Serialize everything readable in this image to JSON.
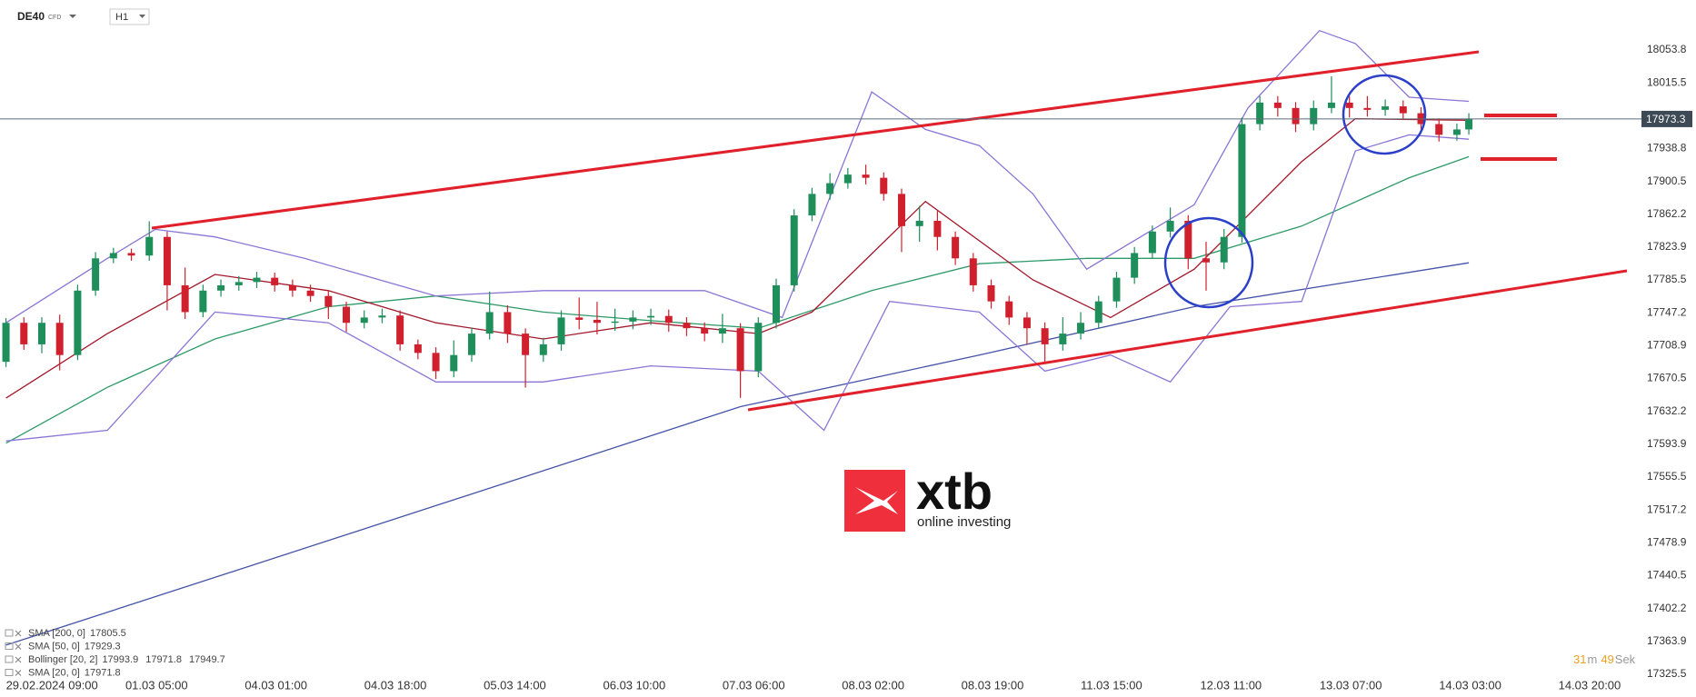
{
  "header": {
    "symbol": "DE40",
    "instrument": "CFD",
    "timeframe": "H1"
  },
  "logo": {
    "brand": "xtb",
    "tagline": "online investing"
  },
  "countdown": {
    "minutes": 31,
    "minutes_unit": "m",
    "seconds": 49,
    "seconds_unit": "Sek"
  },
  "chart_data": {
    "type": "candlestick",
    "up_color": "#1e8e5a",
    "down_color": "#d0202e",
    "xlim": [
      -1,
      273
    ],
    "ylim": [
      17322.3,
      18112.1
    ],
    "xticks": [
      {
        "value": 0,
        "label": "29.02.2024 09:00"
      },
      {
        "value": 20,
        "label": "01.03 05:00"
      },
      {
        "value": 40,
        "label": "04.03 01:00"
      },
      {
        "value": 60,
        "label": "04.03 18:00"
      },
      {
        "value": 80,
        "label": "05.03 14:00"
      },
      {
        "value": 100,
        "label": "06.03 10:00"
      },
      {
        "value": 120,
        "label": "07.03 06:00"
      },
      {
        "value": 140,
        "label": "08.03 02:00"
      },
      {
        "value": 160,
        "label": "08.03 19:00"
      },
      {
        "value": 180,
        "label": "11.03 15:00"
      },
      {
        "value": 200,
        "label": "12.03 11:00"
      },
      {
        "value": 220,
        "label": "13.03 07:00"
      },
      {
        "value": 240,
        "label": "14.03 03:00"
      },
      {
        "value": 260,
        "label": "14.03 20:00"
      }
    ],
    "yticks": [
      18053.8,
      18015.5,
      17938.8,
      17900.5,
      17862.2,
      17823.9,
      17785.5,
      17747.2,
      17708.9,
      17670.5,
      17632.2,
      17593.9,
      17555.5,
      17517.2,
      17478.9,
      17440.5,
      17402.2,
      17363.9,
      17325.5
    ],
    "current_price": 17973.3,
    "candles": {
      "x": [
        0,
        3,
        6,
        9,
        12,
        15,
        18,
        21,
        24,
        27,
        30,
        33,
        36,
        39,
        42,
        45,
        48,
        51,
        54,
        57,
        60,
        63,
        66,
        69,
        72,
        75,
        78,
        81,
        84,
        87,
        90,
        93,
        96,
        99,
        102,
        105,
        108,
        111,
        114,
        117,
        120,
        123,
        126,
        129,
        132,
        135,
        138,
        141,
        144,
        147,
        150,
        153,
        156,
        159,
        162,
        165,
        168,
        171,
        174,
        177,
        180,
        183,
        186,
        189,
        192,
        195,
        198,
        201,
        204,
        207,
        210,
        213,
        216,
        219,
        222,
        225,
        228,
        231,
        234,
        237,
        240,
        243,
        245
      ],
      "open": [
        17690.0,
        17735.5,
        17710.4,
        17735.5,
        17697.9,
        17773.1,
        17810.7,
        17816.9,
        17814.0,
        17835.7,
        17779.3,
        17748.0,
        17773.1,
        17779.3,
        17783.1,
        17788.1,
        17779.3,
        17773.1,
        17766.8,
        17754.3,
        17735.5,
        17741.7,
        17744.0,
        17710.4,
        17700.4,
        17679.1,
        17697.9,
        17722.9,
        17748.0,
        17722.9,
        17697.9,
        17710.4,
        17741.7,
        17739.0,
        17735.5,
        17737.0,
        17741.7,
        17743.5,
        17735.5,
        17729.2,
        17722.9,
        17729.2,
        17679.1,
        17735.5,
        17779.3,
        17860.8,
        17885.9,
        17898.4,
        17908.4,
        17904.7,
        17885.9,
        17848.3,
        17854.5,
        17835.7,
        17810.7,
        17779.3,
        17760.5,
        17741.7,
        17729.2,
        17710.4,
        17722.9,
        17735.5,
        17760.5,
        17788.1,
        17816.9,
        17842.0,
        17854.5,
        17810.7,
        17806.0,
        17835.7,
        17967.3,
        17992.4,
        17986.1,
        17967.3,
        17986.1,
        17992.4,
        17986.1,
        17984.0,
        17988.0,
        17980.0,
        17967.3,
        17954.8,
        17961.1
      ],
      "high": [
        17741,
        17742,
        17742,
        17745,
        17780,
        17818,
        17823,
        17822,
        17854,
        17842,
        17800,
        17780,
        17786,
        17790,
        17795,
        17794,
        17786,
        17780,
        17773,
        17760,
        17750,
        17752,
        17750,
        17716,
        17707,
        17715,
        17730,
        17772,
        17756,
        17729,
        17718,
        17750,
        17765,
        17760,
        17752,
        17750,
        17752,
        17751,
        17742,
        17736,
        17746,
        17735,
        17742,
        17787,
        17868,
        17893,
        17910,
        17916,
        17920,
        17911,
        17892,
        17872,
        17866,
        17842,
        17817,
        17786,
        17767,
        17748,
        17736,
        17742,
        17748,
        17767,
        17795,
        17824,
        17849,
        17870,
        17861,
        17830,
        17845,
        17975,
        18000,
        18000,
        17993,
        17995,
        18023,
        18000,
        18000,
        17996,
        17995,
        17987,
        17974,
        17968,
        17980
      ],
      "low": [
        17684,
        17704,
        17700,
        17680,
        17692,
        17767,
        17805,
        17808,
        17808,
        17750,
        17740,
        17742,
        17766,
        17773,
        17776,
        17772,
        17766,
        17760,
        17740,
        17725,
        17729,
        17735,
        17703,
        17693,
        17670,
        17672,
        17690,
        17716,
        17712,
        17660,
        17690,
        17703,
        17728,
        17722,
        17726,
        17728,
        17733,
        17725,
        17720,
        17714,
        17712,
        17648,
        17672,
        17729,
        17772,
        17854,
        17879,
        17892,
        17897,
        17878,
        17818,
        17830,
        17820,
        17803,
        17772,
        17752,
        17733,
        17710,
        17690,
        17703,
        17716,
        17729,
        17753,
        17781,
        17810,
        17835,
        17798,
        17773,
        17798,
        17829,
        17960,
        17976,
        17958,
        17960,
        17980,
        17975,
        17976,
        17977,
        17972,
        17958,
        17947,
        17948,
        17955
      ],
      "close": [
        17735.5,
        17710.4,
        17735.5,
        17697.9,
        17773.1,
        17810.7,
        17816.9,
        17814.0,
        17835.7,
        17779.3,
        17748.0,
        17773.1,
        17779.3,
        17783.1,
        17788.1,
        17779.3,
        17773.1,
        17766.8,
        17754.3,
        17735.5,
        17741.7,
        17744.0,
        17710.4,
        17700.4,
        17679.1,
        17697.9,
        17722.9,
        17748.0,
        17722.9,
        17697.9,
        17710.4,
        17741.7,
        17739.0,
        17735.5,
        17737.0,
        17741.7,
        17743.5,
        17735.5,
        17729.2,
        17722.9,
        17729.2,
        17679.1,
        17735.5,
        17779.3,
        17860.8,
        17885.9,
        17898.4,
        17908.4,
        17904.7,
        17885.9,
        17848.3,
        17854.5,
        17835.7,
        17810.7,
        17779.3,
        17760.5,
        17741.7,
        17729.2,
        17710.4,
        17722.9,
        17735.5,
        17760.5,
        17788.1,
        17816.9,
        17842.0,
        17854.5,
        17810.7,
        17806.0,
        17835.7,
        17967.3,
        17992.4,
        17986.1,
        17967.3,
        17986.1,
        17992.4,
        17986.1,
        17984.0,
        17988.0,
        17980.0,
        17967.3,
        17954.8,
        17961.1,
        17973.3
      ]
    },
    "indicators": [
      {
        "name": "SMA [200, 0]",
        "color": "#4453a8",
        "readings": [
          17805.5
        ],
        "lines": [
          {
            "x": [
              0,
              61,
              123,
              163,
              199,
              245
            ],
            "values": [
              17359.5,
              17497.3,
              17637.7,
              17697.9,
              17754.3,
              17805.5
            ]
          }
        ]
      },
      {
        "name": "SMA [50, 0]",
        "color": "#2e9a68",
        "readings": [
          17929.3
        ],
        "lines": [
          {
            "x": [
              0,
              17,
              35,
              54,
              72,
              90,
              108,
              126,
              145,
              163,
              181,
              199,
              217,
              235,
              245
            ],
            "values": [
              17595.1,
              17660.3,
              17716.7,
              17754.3,
              17766.8,
              17748.0,
              17738.0,
              17729.2,
              17773.1,
              17804.4,
              17810.7,
              17810.7,
              17848.3,
              17904.7,
              17929.3
            ]
          }
        ]
      },
      {
        "name": "Bollinger [20, 2]",
        "color": "#8b74d6",
        "readings": [
          17993.9,
          17971.8,
          17949.7
        ],
        "lines": [
          {
            "x": [
              0,
              17,
              25,
              35,
              50,
              72,
              90,
              117,
              130,
              145,
              154,
              163,
              172,
              181,
              199,
              208,
              220,
              226,
              235,
              245
            ],
            "values": [
              17735.5,
              17810.7,
              17844.5,
              17835.7,
              17810.7,
              17766.8,
              17773.1,
              17773.1,
              17741.7,
              18004.9,
              17961.1,
              17942.3,
              17885.9,
              17798.1,
              17873.3,
              17986.1,
              18076.4,
              18061.3,
              17998.7,
              17993.9
            ]
          },
          {
            "x": [
              0,
              17,
              26,
              35,
              54,
              72,
              90,
              108,
              126,
              137,
              148,
              163,
              174,
              185,
              195,
              205,
              217,
              226,
              235,
              245
            ],
            "values": [
              17597.6,
              17610.1,
              17679.1,
              17748.0,
              17735.5,
              17666.5,
              17666.5,
              17685.3,
              17679.1,
              17610.1,
              17760.5,
              17748.0,
              17679.1,
              17697.9,
              17666.5,
              17754.3,
              17760.5,
              17936.0,
              17954.8,
              17949.7
            ]
          }
        ]
      },
      {
        "name": "SMA [20, 0]",
        "color": "#a3172a",
        "readings": [
          17971.8
        ],
        "lines": [
          {
            "x": [
              0,
              17,
              35,
              54,
              72,
              90,
              108,
              126,
              135,
              154,
              172,
              185,
              199,
              217,
              226,
              245
            ],
            "values": [
              17647.7,
              17722.9,
              17791.9,
              17773.1,
              17735.5,
              17716.7,
              17735.5,
              17722.9,
              17748.0,
              17877.1,
              17785.6,
              17741.7,
              17798.1,
              17923.5,
              17973.6,
              17971.8
            ]
          }
        ]
      }
    ]
  }
}
